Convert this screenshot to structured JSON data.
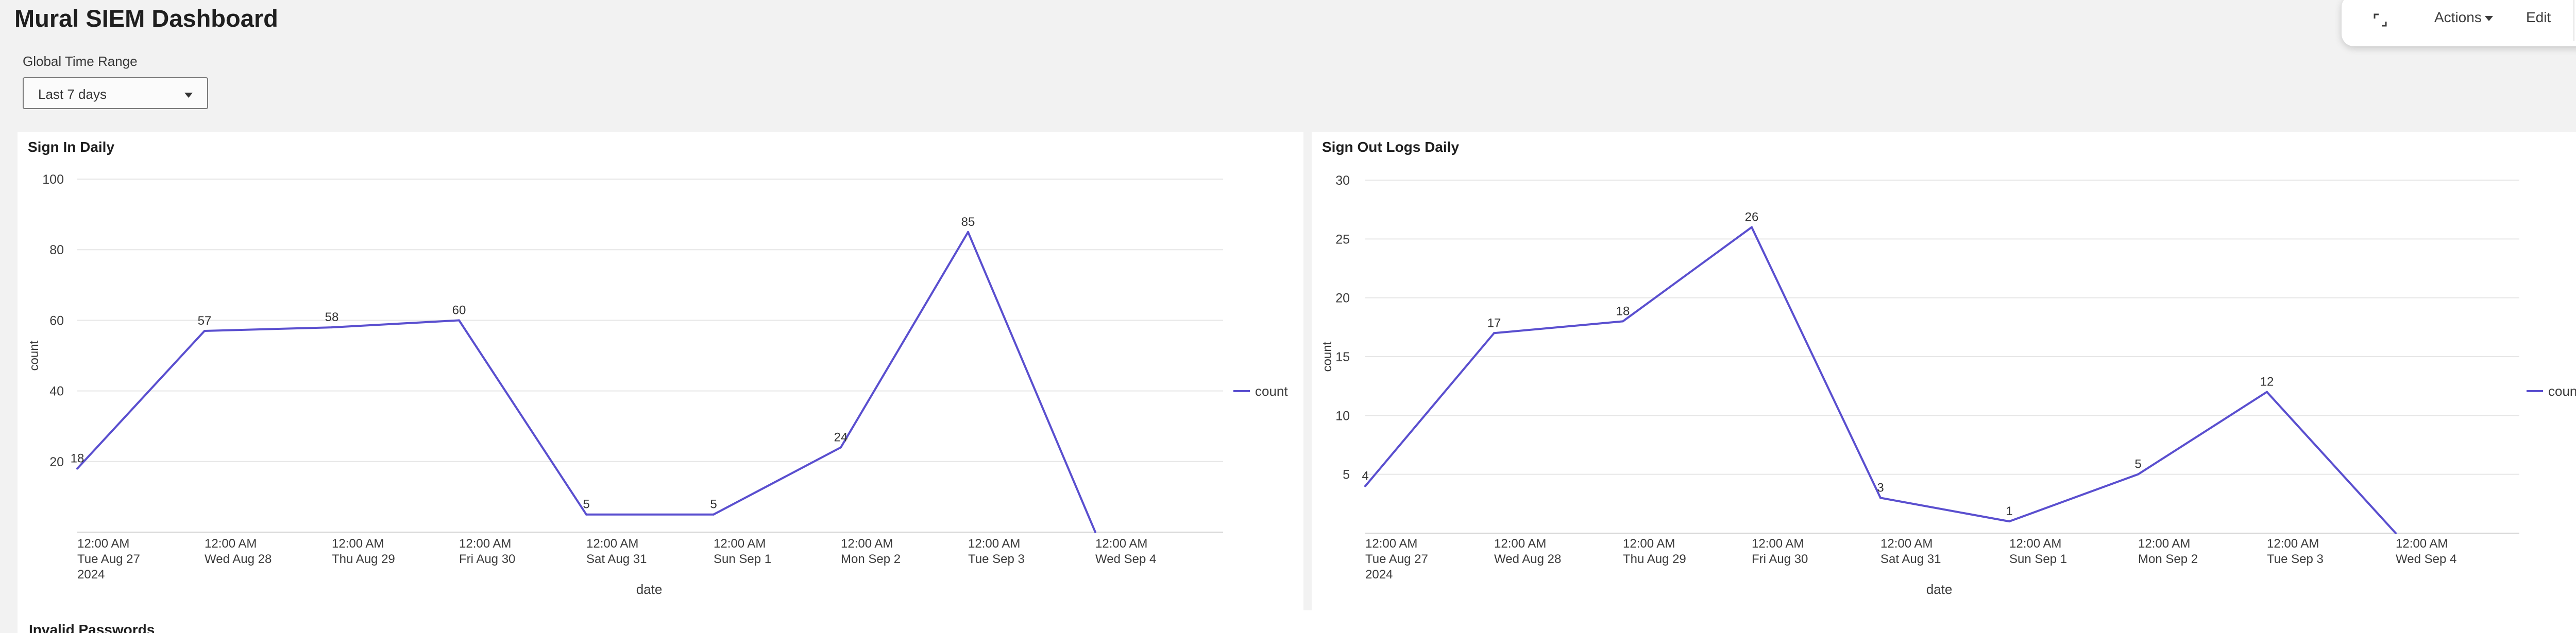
{
  "dashboard": {
    "title": "Mural SIEM Dashboard",
    "toolbar": {
      "actions_label": "Actions",
      "edit_label": "Edit",
      "expand_icon": "expand-icon"
    },
    "time_range": {
      "label": "Global Time Range",
      "value": "Last 7 days"
    },
    "bottom_panel_title": "Invalid Passwords"
  },
  "colors": {
    "series": "#5a4fcf",
    "grid": "#e6e6e6",
    "axis_text": "#3b3b3b"
  },
  "chart_data": [
    {
      "type": "line",
      "title": "Sign In Daily",
      "xlabel": "date",
      "ylabel": "count",
      "ylim": [
        0,
        100
      ],
      "yticks": [
        20,
        40,
        60,
        80,
        100
      ],
      "grid": true,
      "legend": "right",
      "categories": [
        [
          "12:00 AM",
          "Tue Aug 27",
          "2024"
        ],
        [
          "12:00 AM",
          "Wed Aug 28"
        ],
        [
          "12:00 AM",
          "Thu Aug 29"
        ],
        [
          "12:00 AM",
          "Fri Aug 30"
        ],
        [
          "12:00 AM",
          "Sat Aug 31"
        ],
        [
          "12:00 AM",
          "Sun Sep 1"
        ],
        [
          "12:00 AM",
          "Mon Sep 2"
        ],
        [
          "12:00 AM",
          "Tue Sep 3"
        ],
        [
          "12:00 AM",
          "Wed Sep 4"
        ]
      ],
      "series": [
        {
          "name": "count",
          "values": [
            18,
            57,
            58,
            60,
            5,
            5,
            24,
            85,
            0
          ],
          "labels": [
            "18",
            "57",
            "58",
            "60",
            "5",
            "5",
            "24",
            "85",
            ""
          ]
        }
      ]
    },
    {
      "type": "line",
      "title": "Sign Out Logs Daily",
      "xlabel": "date",
      "ylabel": "count",
      "ylim": [
        0,
        30
      ],
      "yticks": [
        5,
        10,
        15,
        20,
        25,
        30
      ],
      "grid": true,
      "legend": "right",
      "categories": [
        [
          "12:00 AM",
          "Tue Aug 27",
          "2024"
        ],
        [
          "12:00 AM",
          "Wed Aug 28"
        ],
        [
          "12:00 AM",
          "Thu Aug 29"
        ],
        [
          "12:00 AM",
          "Fri Aug 30"
        ],
        [
          "12:00 AM",
          "Sat Aug 31"
        ],
        [
          "12:00 AM",
          "Sun Sep 1"
        ],
        [
          "12:00 AM",
          "Mon Sep 2"
        ],
        [
          "12:00 AM",
          "Tue Sep 3"
        ],
        [
          "12:00 AM",
          "Wed Sep 4"
        ]
      ],
      "series": [
        {
          "name": "count",
          "values": [
            4,
            17,
            18,
            26,
            3,
            1,
            5,
            12,
            0
          ],
          "labels": [
            "4",
            "17",
            "18",
            "26",
            "3",
            "1",
            "5",
            "12",
            ""
          ]
        }
      ]
    }
  ]
}
